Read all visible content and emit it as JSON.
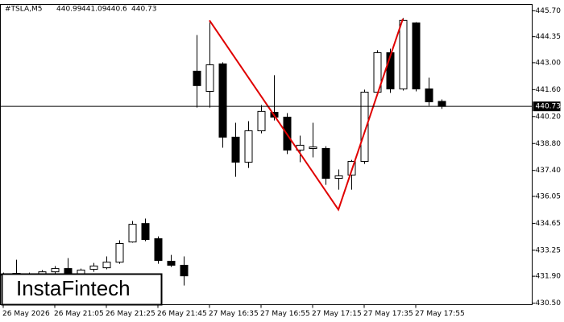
{
  "chart_data": {
    "type": "candlestick",
    "symbol": "#TSLA,M5",
    "categories": [
      "26 May 2026",
      null,
      null,
      null,
      "26 May 21:05",
      null,
      null,
      null,
      "26 May 21:25",
      null,
      null,
      null,
      "26 May 21:45",
      null,
      null,
      null,
      "27 May 16:35",
      null,
      null,
      null,
      "27 May 16:55",
      null,
      null,
      null,
      "27 May 17:15",
      null,
      null,
      null,
      "27 May 17:35",
      null,
      null,
      null,
      "27 May 17:55",
      null,
      null
    ],
    "open": [
      432.01,
      432.05,
      432.01,
      432.01,
      432.13,
      432.3,
      432.01,
      432.26,
      432.34,
      432.63,
      433.68,
      434.64,
      433.85,
      432.68,
      432.47,
      442.56,
      441.51,
      442.94,
      439.13,
      437.83,
      439.46,
      440.42,
      440.17,
      438.46,
      438.54,
      438.54,
      436.99,
      437.16,
      437.87,
      441.47,
      443.52,
      441.64,
      445.07,
      441.64,
      440.99
    ],
    "high": [
      432.09,
      432.76,
      432.09,
      432.22,
      432.43,
      432.84,
      432.3,
      432.59,
      432.93,
      433.77,
      434.77,
      434.9,
      433.97,
      433.01,
      432.93,
      444.44,
      445.11,
      443.02,
      439.88,
      439.96,
      440.8,
      442.35,
      440.38,
      439.21,
      439.88,
      438.66,
      437.45,
      437.95,
      441.6,
      443.65,
      443.73,
      445.32,
      445.11,
      442.22,
      441.09
    ],
    "low": [
      431.88,
      431.88,
      431.84,
      431.88,
      432.01,
      431.88,
      431.92,
      432.13,
      432.26,
      432.55,
      433.64,
      433.72,
      432.55,
      432.38,
      431.42,
      440.67,
      440.67,
      438.58,
      437.07,
      437.53,
      439.33,
      440.0,
      438.25,
      437.83,
      438.08,
      436.65,
      436.4,
      436.4,
      437.74,
      441.39,
      441.43,
      441.55,
      441.51,
      440.76,
      440.6
    ],
    "close": [
      431.96,
      431.96,
      431.92,
      432.13,
      432.3,
      432.01,
      432.22,
      432.43,
      432.63,
      433.6,
      434.6,
      433.81,
      432.72,
      432.47,
      431.92,
      441.81,
      442.89,
      439.13,
      437.83,
      439.46,
      440.47,
      440.17,
      438.46,
      438.71,
      438.62,
      436.99,
      437.12,
      437.87,
      441.47,
      443.52,
      441.64,
      445.2,
      441.64,
      440.97,
      440.73
    ],
    "pattern": {
      "color": "#e00000",
      "index": [
        16,
        26,
        31
      ],
      "values": [
        445.2,
        435.36,
        445.28
      ]
    },
    "ylim": [
      430.42,
      446.03
    ],
    "yticks": [
      {
        "value": 445.7,
        "label": "445.70"
      },
      444.35,
      {
        "value": 443,
        "label": "443.00"
      },
      {
        "value": 441.6,
        "label": "441.60"
      },
      {
        "value": 440.2,
        "label": "440.20"
      },
      {
        "value": 438.8,
        "label": "438.80"
      },
      {
        "value": 437.4,
        "label": "437.40"
      },
      436.05,
      434.65,
      433.25,
      {
        "value": 431.9,
        "label": "431.90"
      },
      {
        "value": 430.5,
        "label": "430.50"
      }
    ],
    "logo": "InstaFintech"
  }
}
